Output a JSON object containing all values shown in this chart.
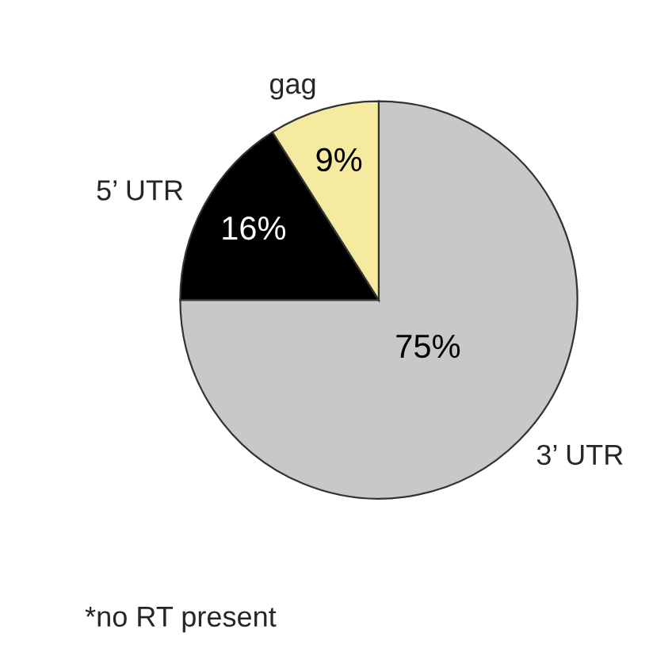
{
  "chart_data": {
    "type": "pie",
    "categories": [
      "3’ UTR",
      "5’ UTR",
      "gag"
    ],
    "values": [
      75,
      16,
      9
    ],
    "colors": [
      "#c8c8c8",
      "#000000",
      "#f5eba0"
    ],
    "value_labels": [
      "75%",
      "16%",
      "9%"
    ],
    "annotations": [
      "*no RT present"
    ]
  }
}
